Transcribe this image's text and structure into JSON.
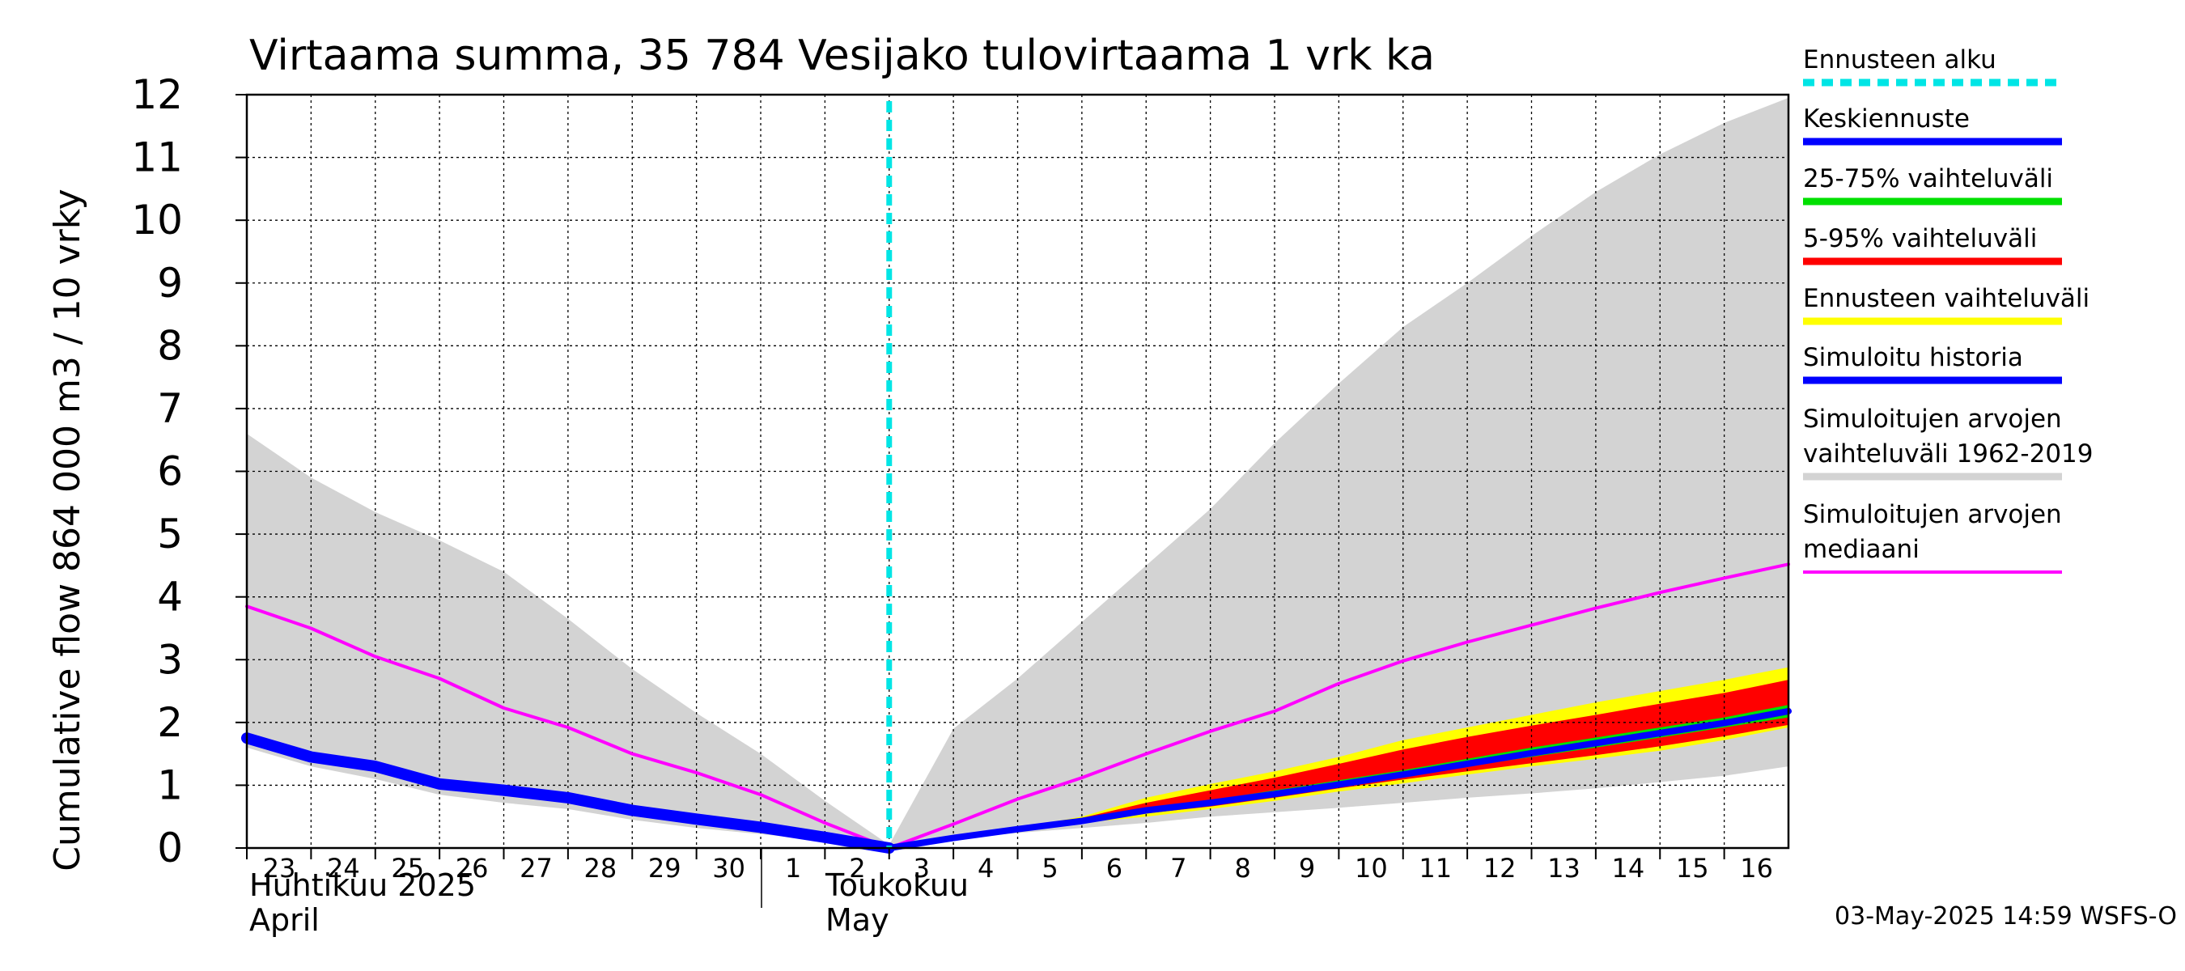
{
  "chart_data": {
    "type": "area",
    "title": "Virtaama summa, 35 784 Vesijako tulovirtaama 1 vrk ka",
    "ylabel": "Cumulative flow    864 000 m3 / 10 vrky",
    "xlabel": "",
    "ylim": [
      0,
      12
    ],
    "yticks": [
      "0",
      "1",
      "2",
      "3",
      "4",
      "5",
      "6",
      "7",
      "8",
      "9",
      "10",
      "11",
      "12"
    ],
    "x_tick_labels": [
      "23",
      "24",
      "25",
      "26",
      "27",
      "28",
      "29",
      "30",
      "1",
      "2",
      "3",
      "4",
      "5",
      "6",
      "7",
      "8",
      "9",
      "10",
      "11",
      "12",
      "13",
      "14",
      "15",
      "16"
    ],
    "x_tick_days": [
      0,
      1,
      2,
      3,
      4,
      5,
      6,
      7,
      8,
      9,
      10,
      11,
      12,
      13,
      14,
      15,
      16,
      17,
      18,
      19,
      20,
      21,
      22,
      23
    ],
    "xlim_days": [
      0,
      24
    ],
    "month_labels": [
      {
        "line1": "Huhtikuu  2025",
        "line2": "April",
        "day": 0
      },
      {
        "line1": "Toukokuu",
        "line2": "May",
        "day": 9.3
      }
    ],
    "forecast_start_day": 10,
    "grid": true,
    "series": [
      {
        "name": "Simuloitujen arvojen vaihteluväli 1962-2019",
        "kind": "band",
        "color": "#d3d3d3",
        "x": [
          0,
          1,
          2,
          3,
          4,
          5,
          6,
          7,
          8,
          9,
          10,
          11,
          12,
          13,
          14,
          15,
          16,
          17,
          18,
          19,
          20,
          21,
          22,
          23,
          24
        ],
        "upper": [
          6.6,
          5.9,
          5.35,
          4.9,
          4.4,
          3.65,
          2.85,
          2.15,
          1.5,
          0.75,
          0.05,
          1.9,
          2.7,
          3.6,
          4.5,
          5.4,
          6.45,
          7.4,
          8.3,
          9.0,
          9.75,
          10.45,
          11.05,
          11.55,
          11.95
        ],
        "lower": [
          1.6,
          1.3,
          1.1,
          0.85,
          0.72,
          0.62,
          0.45,
          0.32,
          0.22,
          0.12,
          0.0,
          0.14,
          0.24,
          0.32,
          0.4,
          0.5,
          0.57,
          0.64,
          0.72,
          0.8,
          0.87,
          0.95,
          1.05,
          1.15,
          1.3
        ]
      },
      {
        "name": "Ennusteen vaihteluväli",
        "kind": "band",
        "color": "#ffff00",
        "x": [
          10,
          11,
          12,
          13,
          14,
          15,
          16,
          17,
          18,
          19,
          20,
          21,
          22,
          23,
          24
        ],
        "upper": [
          0.0,
          0.18,
          0.32,
          0.5,
          0.8,
          1.02,
          1.22,
          1.45,
          1.72,
          1.92,
          2.12,
          2.32,
          2.5,
          2.68,
          2.88
        ],
        "lower": [
          0.0,
          0.14,
          0.26,
          0.4,
          0.5,
          0.62,
          0.75,
          0.9,
          1.03,
          1.17,
          1.3,
          1.42,
          1.55,
          1.72,
          1.92
        ]
      },
      {
        "name": "5-95% vaihteluväli",
        "kind": "band",
        "color": "#ff0000",
        "x": [
          10,
          11,
          12,
          13,
          14,
          15,
          16,
          17,
          18,
          19,
          20,
          21,
          22,
          23,
          24
        ],
        "upper": [
          0.0,
          0.17,
          0.3,
          0.48,
          0.72,
          0.92,
          1.12,
          1.34,
          1.57,
          1.77,
          1.95,
          2.12,
          2.3,
          2.47,
          2.68
        ],
        "lower": [
          0.0,
          0.15,
          0.28,
          0.42,
          0.55,
          0.66,
          0.8,
          0.95,
          1.09,
          1.22,
          1.35,
          1.48,
          1.62,
          1.78,
          1.96
        ]
      },
      {
        "name": "25-75% vaihteluväli",
        "kind": "band",
        "color": "#00e000",
        "x": [
          10,
          11,
          12,
          13,
          14,
          15,
          16,
          17,
          18,
          19,
          20,
          21,
          22,
          23,
          24
        ],
        "upper": [
          0.0,
          0.16,
          0.3,
          0.45,
          0.62,
          0.76,
          0.92,
          1.08,
          1.24,
          1.42,
          1.6,
          1.76,
          1.92,
          2.08,
          2.28
        ],
        "lower": [
          0.0,
          0.15,
          0.29,
          0.42,
          0.58,
          0.7,
          0.84,
          0.99,
          1.14,
          1.3,
          1.45,
          1.6,
          1.76,
          1.92,
          2.08
        ]
      },
      {
        "name": "Simuloitujen arvojen mediaani",
        "kind": "line",
        "color": "#ff00ff",
        "x": [
          0,
          1,
          2,
          3,
          4,
          5,
          6,
          7,
          8,
          9,
          10,
          11,
          12,
          13,
          14,
          15,
          16,
          17,
          18,
          19,
          20,
          21,
          22,
          23,
          24
        ],
        "values": [
          3.85,
          3.5,
          3.05,
          2.7,
          2.23,
          1.92,
          1.5,
          1.2,
          0.85,
          0.4,
          0.0,
          0.38,
          0.78,
          1.12,
          1.5,
          1.86,
          2.18,
          2.62,
          2.98,
          3.28,
          3.55,
          3.82,
          4.07,
          4.3,
          4.52
        ]
      },
      {
        "name": "Simuloitu historia",
        "kind": "line",
        "color": "#0000ff",
        "width": 14,
        "x": [
          0,
          1,
          2,
          3,
          4,
          5,
          6,
          7,
          8,
          9,
          10
        ],
        "values": [
          1.75,
          1.45,
          1.3,
          1.02,
          0.92,
          0.8,
          0.6,
          0.46,
          0.33,
          0.17,
          0.0
        ]
      },
      {
        "name": "Keskiennuste",
        "kind": "line",
        "color": "#0000ff",
        "width": 8,
        "x": [
          10,
          11,
          12,
          13,
          14,
          15,
          16,
          17,
          18,
          19,
          20,
          21,
          22,
          23,
          24
        ],
        "values": [
          0.0,
          0.16,
          0.3,
          0.43,
          0.6,
          0.72,
          0.86,
          1.01,
          1.17,
          1.34,
          1.51,
          1.67,
          1.83,
          1.99,
          2.18
        ]
      }
    ]
  },
  "legend": [
    {
      "label": "Ennusteen alku",
      "color": "#00e5e5",
      "style": "dashed"
    },
    {
      "label": "Keskiennuste",
      "color": "#0000ff",
      "style": "solid"
    },
    {
      "label": "25-75% vaihteluväli",
      "color": "#00e000",
      "style": "solid"
    },
    {
      "label": "5-95% vaihteluväli",
      "color": "#ff0000",
      "style": "solid"
    },
    {
      "label": "Ennusteen vaihteluväli",
      "color": "#ffff00",
      "style": "solid"
    },
    {
      "label": "Simuloitu historia",
      "color": "#0000ff",
      "style": "solid"
    },
    {
      "label": "Simuloitujen arvojen",
      "label2": "vaihteluväli 1962-2019",
      "color": "#d3d3d3",
      "style": "solid"
    },
    {
      "label": "Simuloitujen arvojen",
      "label2": "mediaani",
      "color": "#ff00ff",
      "style": "thin"
    }
  ],
  "footer": "03-May-2025 14:59 WSFS-O"
}
